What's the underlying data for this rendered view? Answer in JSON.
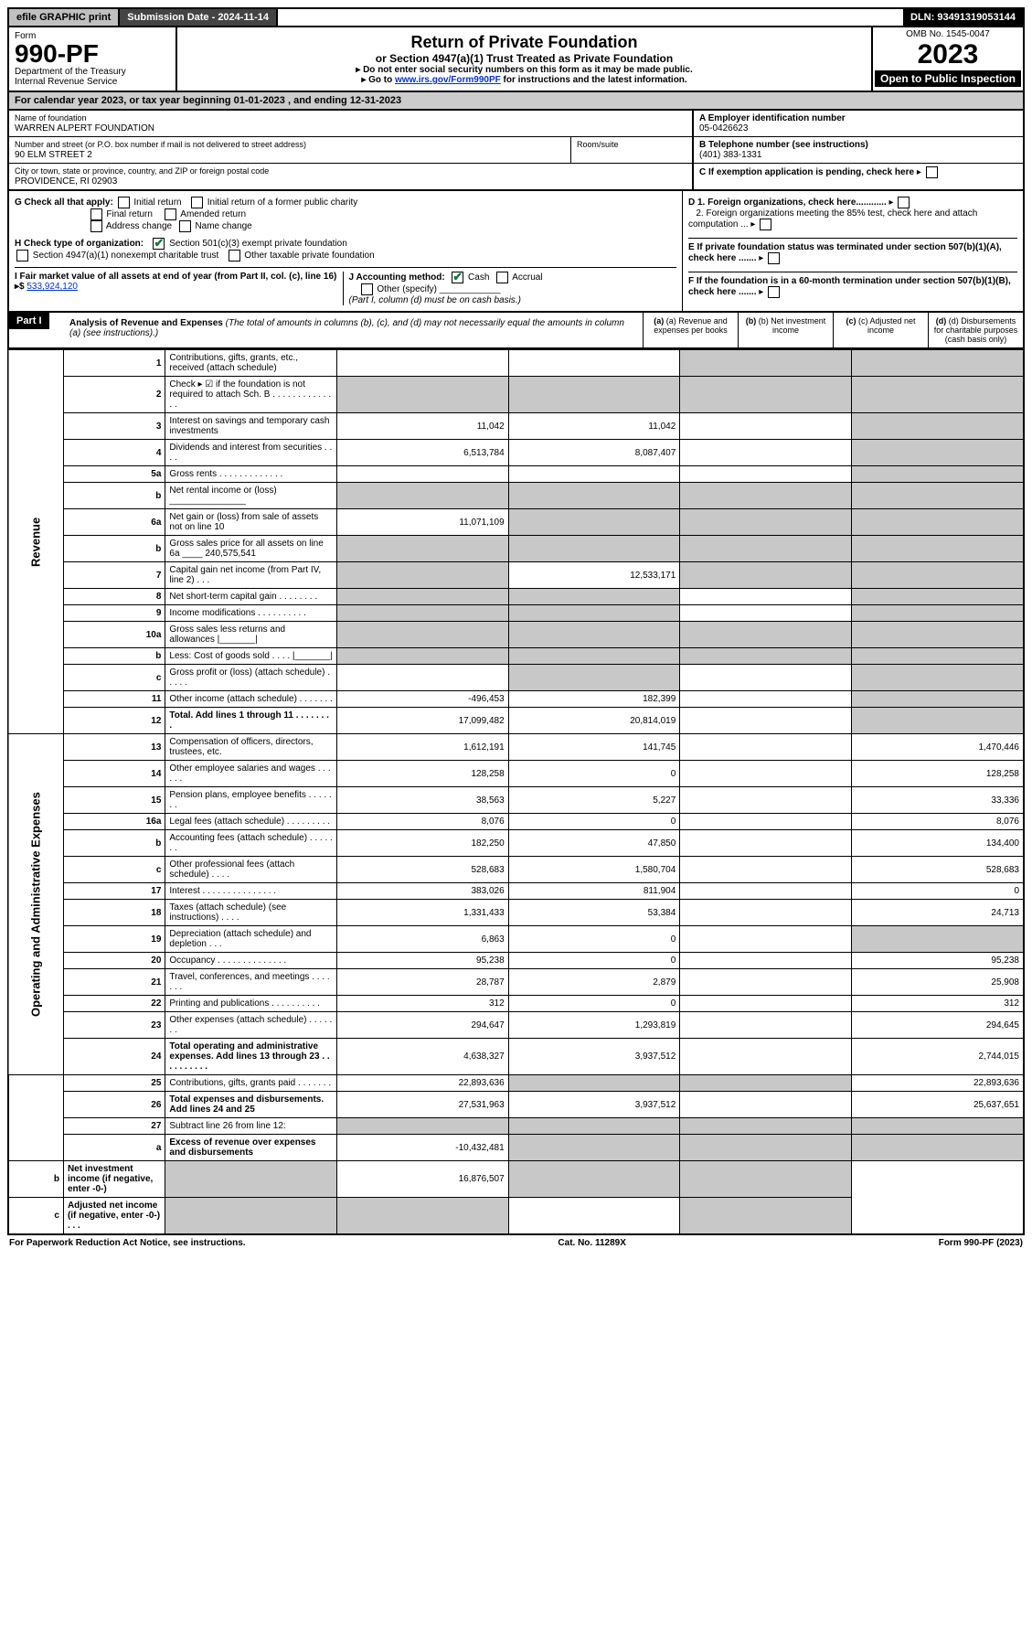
{
  "colors": {
    "black": "#000000",
    "white": "#ffffff",
    "header_gray": "#c0c0c0",
    "dark_gray": "#444444",
    "cell_shade": "#c8c8c8",
    "check_green": "#0a7a3a",
    "link_blue": "#0033cc"
  },
  "top": {
    "efile": "efile GRAPHIC print",
    "submission": "Submission Date - 2024-11-14",
    "dln": "DLN: 93491319053144"
  },
  "header": {
    "form_label": "Form",
    "form_no": "990-PF",
    "dept": "Department of the Treasury",
    "irs": "Internal Revenue Service",
    "title": "Return of Private Foundation",
    "subtitle": "or Section 4947(a)(1) Trust Treated as Private Foundation",
    "instr1": "▸ Do not enter social security numbers on this form as it may be made public.",
    "instr2_pre": "▸ Go to ",
    "instr2_link": "www.irs.gov/Form990PF",
    "instr2_post": " for instructions and the latest information.",
    "omb": "OMB No. 1545-0047",
    "year": "2023",
    "inspect": "Open to Public Inspection"
  },
  "calyear": "For calendar year 2023, or tax year beginning 01-01-2023                          , and ending 12-31-2023",
  "entity": {
    "name_lbl": "Name of foundation",
    "name": "WARREN ALPERT FOUNDATION",
    "addr_lbl": "Number and street (or P.O. box number if mail is not delivered to street address)",
    "room_lbl": "Room/suite",
    "addr": "90 ELM STREET 2",
    "city_lbl": "City or town, state or province, country, and ZIP or foreign postal code",
    "city": "PROVIDENCE, RI  02903",
    "A_lbl": "A Employer identification number",
    "A_val": "05-0426623",
    "B_lbl": "B Telephone number (see instructions)",
    "B_val": "(401) 383-1331",
    "C_lbl": "C If exemption application is pending, check here"
  },
  "checks": {
    "G": "G Check all that apply:",
    "G_opts": [
      "Initial return",
      "Initial return of a former public charity",
      "Final return",
      "Amended return",
      "Address change",
      "Name change"
    ],
    "H": "H Check type of organization:",
    "H1": "Section 501(c)(3) exempt private foundation",
    "H2": "Section 4947(a)(1) nonexempt charitable trust",
    "H3": "Other taxable private foundation",
    "I_pre": "I Fair market value of all assets at end of year (from Part II, col. (c), line 16) ▸$ ",
    "I_val": "533,924,120",
    "J": "J Accounting method:",
    "J_cash": "Cash",
    "J_accr": "Accrual",
    "J_other": "Other (specify)",
    "J_note": "(Part I, column (d) must be on cash basis.)",
    "D1": "D 1. Foreign organizations, check here............",
    "D2": "2. Foreign organizations meeting the 85% test, check here and attach computation ...",
    "E": "E  If private foundation status was terminated under section 507(b)(1)(A), check here .......",
    "F": "F  If the foundation is in a 60-month termination under section 507(b)(1)(B), check here ......."
  },
  "part1": {
    "label": "Part I",
    "title": "Analysis of Revenue and Expenses",
    "title_note": "(The total of amounts in columns (b), (c), and (d) may not necessarily equal the amounts in column (a) (see instructions).)",
    "col_a": "(a) Revenue and expenses per books",
    "col_b": "(b) Net investment income",
    "col_c": "(c) Adjusted net income",
    "col_d": "(d) Disbursements for charitable purposes (cash basis only)"
  },
  "sections": {
    "revenue": "Revenue",
    "expenses": "Operating and Administrative Expenses"
  },
  "rows": [
    {
      "n": "1",
      "lbl": "Contributions, gifts, grants, etc., received (attach schedule)",
      "a": "",
      "b": "",
      "c": "",
      "d": "",
      "shade_c": true,
      "shade_d": true
    },
    {
      "n": "2",
      "lbl": "Check ▸ ☑ if the foundation is not required to attach Sch. B    .   .   .   .   .   .   .   .   .   .   .   .   .   .",
      "a": "",
      "b": "",
      "c": "",
      "d": "",
      "shade_a": true,
      "shade_b": true,
      "shade_c": true,
      "shade_d": true
    },
    {
      "n": "3",
      "lbl": "Interest on savings and temporary cash investments",
      "a": "11,042",
      "b": "11,042",
      "c": "",
      "d": "",
      "shade_d": true
    },
    {
      "n": "4",
      "lbl": "Dividends and interest from securities   .   .   .   .",
      "a": "6,513,784",
      "b": "8,087,407",
      "c": "",
      "d": "",
      "shade_d": true
    },
    {
      "n": "5a",
      "lbl": "Gross rents   .   .   .   .   .   .   .   .   .   .   .   .   .",
      "a": "",
      "b": "",
      "c": "",
      "d": "",
      "shade_d": true
    },
    {
      "n": "b",
      "lbl": "Net rental income or (loss) _______________",
      "a": "",
      "b": "",
      "c": "",
      "d": "",
      "shade_a": true,
      "shade_b": true,
      "shade_c": true,
      "shade_d": true
    },
    {
      "n": "6a",
      "lbl": "Net gain or (loss) from sale of assets not on line 10",
      "a": "11,071,109",
      "b": "",
      "c": "",
      "d": "",
      "shade_b": true,
      "shade_c": true,
      "shade_d": true
    },
    {
      "n": "b",
      "lbl": "Gross sales price for all assets on line 6a ____ 240,575,541",
      "a": "",
      "b": "",
      "c": "",
      "d": "",
      "shade_a": true,
      "shade_b": true,
      "shade_c": true,
      "shade_d": true
    },
    {
      "n": "7",
      "lbl": "Capital gain net income (from Part IV, line 2)   .   .   .",
      "a": "",
      "b": "12,533,171",
      "c": "",
      "d": "",
      "shade_a": true,
      "shade_c": true,
      "shade_d": true
    },
    {
      "n": "8",
      "lbl": "Net short-term capital gain   .   .   .   .   .   .   .   .",
      "a": "",
      "b": "",
      "c": "",
      "d": "",
      "shade_a": true,
      "shade_b": true,
      "shade_d": true
    },
    {
      "n": "9",
      "lbl": "Income modifications   .   .   .   .   .   .   .   .   .   .",
      "a": "",
      "b": "",
      "c": "",
      "d": "",
      "shade_a": true,
      "shade_b": true,
      "shade_d": true
    },
    {
      "n": "10a",
      "lbl": "Gross sales less returns and allowances  |_______|",
      "a": "",
      "b": "",
      "c": "",
      "d": "",
      "shade_a": true,
      "shade_b": true,
      "shade_c": true,
      "shade_d": true
    },
    {
      "n": "b",
      "lbl": "Less: Cost of goods sold   .   .   .   .  |_______|",
      "a": "",
      "b": "",
      "c": "",
      "d": "",
      "shade_a": true,
      "shade_b": true,
      "shade_c": true,
      "shade_d": true
    },
    {
      "n": "c",
      "lbl": "Gross profit or (loss) (attach schedule)   .   .   .   .   .",
      "a": "",
      "b": "",
      "c": "",
      "d": "",
      "shade_b": true,
      "shade_d": true
    },
    {
      "n": "11",
      "lbl": "Other income (attach schedule)   .   .   .   .   .   .   .",
      "a": "-496,453",
      "b": "182,399",
      "c": "",
      "d": "",
      "shade_d": true
    },
    {
      "n": "12",
      "lbl": "Total. Add lines 1 through 11   .   .   .   .   .   .   .   .",
      "a": "17,099,482",
      "b": "20,814,019",
      "c": "",
      "d": "",
      "bold": true,
      "shade_d": true
    },
    {
      "n": "13",
      "lbl": "Compensation of officers, directors, trustees, etc.",
      "a": "1,612,191",
      "b": "141,745",
      "c": "",
      "d": "1,470,446",
      "sec": "exp"
    },
    {
      "n": "14",
      "lbl": "Other employee salaries and wages   .   .   .   .   .   .",
      "a": "128,258",
      "b": "0",
      "c": "",
      "d": "128,258"
    },
    {
      "n": "15",
      "lbl": "Pension plans, employee benefits   .   .   .   .   .   .   .",
      "a": "38,563",
      "b": "5,227",
      "c": "",
      "d": "33,336"
    },
    {
      "n": "16a",
      "lbl": "Legal fees (attach schedule)   .   .   .   .   .   .   .   .   .",
      "a": "8,076",
      "b": "0",
      "c": "",
      "d": "8,076"
    },
    {
      "n": "b",
      "lbl": "Accounting fees (attach schedule)   .   .   .   .   .   .   .",
      "a": "182,250",
      "b": "47,850",
      "c": "",
      "d": "134,400"
    },
    {
      "n": "c",
      "lbl": "Other professional fees (attach schedule)   .   .   .   .",
      "a": "528,683",
      "b": "1,580,704",
      "c": "",
      "d": "528,683"
    },
    {
      "n": "17",
      "lbl": "Interest   .   .   .   .   .   .   .   .   .   .   .   .   .   .   .",
      "a": "383,026",
      "b": "811,904",
      "c": "",
      "d": "0"
    },
    {
      "n": "18",
      "lbl": "Taxes (attach schedule) (see instructions)   .   .   .   .",
      "a": "1,331,433",
      "b": "53,384",
      "c": "",
      "d": "24,713"
    },
    {
      "n": "19",
      "lbl": "Depreciation (attach schedule) and depletion   .   .   .",
      "a": "6,863",
      "b": "0",
      "c": "",
      "d": "",
      "shade_d": true
    },
    {
      "n": "20",
      "lbl": "Occupancy   .   .   .   .   .   .   .   .   .   .   .   .   .   .",
      "a": "95,238",
      "b": "0",
      "c": "",
      "d": "95,238"
    },
    {
      "n": "21",
      "lbl": "Travel, conferences, and meetings   .   .   .   .   .   .   .",
      "a": "28,787",
      "b": "2,879",
      "c": "",
      "d": "25,908"
    },
    {
      "n": "22",
      "lbl": "Printing and publications   .   .   .   .   .   .   .   .   .   .",
      "a": "312",
      "b": "0",
      "c": "",
      "d": "312"
    },
    {
      "n": "23",
      "lbl": "Other expenses (attach schedule)   .   .   .   .   .   .   .",
      "a": "294,647",
      "b": "1,293,819",
      "c": "",
      "d": "294,645"
    },
    {
      "n": "24",
      "lbl": "Total operating and administrative expenses. Add lines 13 through 23   .   .   .   .   .   .   .   .   .   .",
      "a": "4,638,327",
      "b": "3,937,512",
      "c": "",
      "d": "2,744,015",
      "bold": true
    },
    {
      "n": "25",
      "lbl": "Contributions, gifts, grants paid   .   .   .   .   .   .   .",
      "a": "22,893,636",
      "b": "",
      "c": "",
      "d": "22,893,636",
      "shade_b": true,
      "shade_c": true
    },
    {
      "n": "26",
      "lbl": "Total expenses and disbursements. Add lines 24 and 25",
      "a": "27,531,963",
      "b": "3,937,512",
      "c": "",
      "d": "25,637,651",
      "bold": true
    },
    {
      "n": "27",
      "lbl": "Subtract line 26 from line 12:",
      "a": "",
      "b": "",
      "c": "",
      "d": "",
      "shade_a": true,
      "shade_b": true,
      "shade_c": true,
      "shade_d": true,
      "sec": "end"
    },
    {
      "n": "a",
      "lbl": "Excess of revenue over expenses and disbursements",
      "a": "-10,432,481",
      "b": "",
      "c": "",
      "d": "",
      "bold": true,
      "shade_b": true,
      "shade_c": true,
      "shade_d": true
    },
    {
      "n": "b",
      "lbl": "Net investment income (if negative, enter -0-)",
      "a": "",
      "b": "16,876,507",
      "c": "",
      "d": "",
      "bold": true,
      "shade_a": true,
      "shade_c": true,
      "shade_d": true
    },
    {
      "n": "c",
      "lbl": "Adjusted net income (if negative, enter -0-)   .   .   .",
      "a": "",
      "b": "",
      "c": "",
      "d": "",
      "bold": true,
      "shade_a": true,
      "shade_b": true,
      "shade_d": true
    }
  ],
  "footer": {
    "left": "For Paperwork Reduction Act Notice, see instructions.",
    "mid": "Cat. No. 11289X",
    "right": "Form 990-PF (2023)"
  }
}
